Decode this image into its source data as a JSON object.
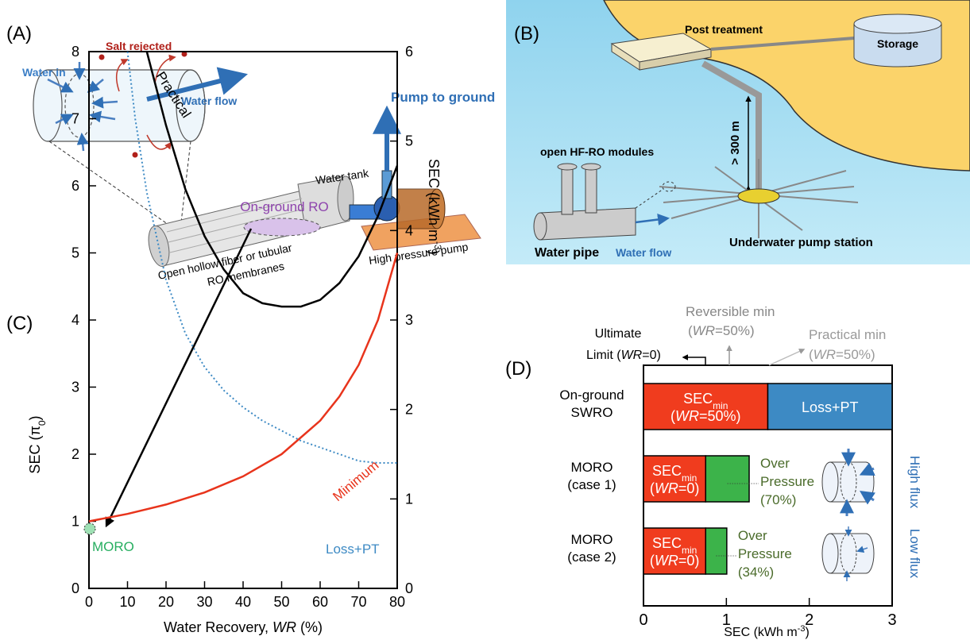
{
  "diagram_a": {
    "label": "(A)",
    "water_in": "Water in",
    "salt_rejected": "Salt rejected",
    "water_flow": "Water flow",
    "pump_to_ground": "Pump to ground",
    "water_tank": "Water tank",
    "membranes": [
      "Open hollow fiber or tubular",
      "RO membranes"
    ],
    "high_pressure_pump": "High pressure pump"
  },
  "diagram_b": {
    "label": "(B)",
    "post_treatment": "Post treatment",
    "storage": "Storage",
    "depth": "> 300 m",
    "modules": "open HF-RO modules",
    "water_pipe": "Water pipe",
    "water_flow": "Water flow",
    "pump_station": "Underwater pump station"
  },
  "chart_data": [
    {
      "type": "line",
      "label": "(C)",
      "xlabel": [
        "Water Recovery, ",
        "WR",
        " (%)"
      ],
      "ylabel": [
        "SEC (π",
        "0",
        ")"
      ],
      "y2label": [
        "SEC (kWh m",
        "-3",
        ")"
      ],
      "xlim": [
        0,
        80
      ],
      "xticks": [
        0,
        10,
        20,
        30,
        40,
        50,
        60,
        70,
        80
      ],
      "ylim": [
        0,
        8
      ],
      "yticks": [
        0,
        1,
        2,
        3,
        4,
        5,
        6,
        7,
        8
      ],
      "y2lim": [
        0,
        6
      ],
      "y2ticks": [
        0,
        1,
        2,
        3,
        4,
        5,
        6
      ],
      "series": [
        {
          "name": "Practical",
          "color": "#000000",
          "style": "solid",
          "x": [
            15,
            20,
            25,
            30,
            35,
            40,
            45,
            50,
            55,
            60,
            65,
            70,
            75,
            80
          ],
          "values": [
            8,
            6.9,
            5.95,
            5.25,
            4.75,
            4.4,
            4.25,
            4.2,
            4.2,
            4.3,
            4.55,
            4.95,
            5.55,
            6.3
          ]
        },
        {
          "name": "Minimum",
          "color": "#e8341c",
          "style": "solid",
          "x": [
            0,
            10,
            20,
            30,
            40,
            50,
            60,
            65,
            70,
            75,
            80
          ],
          "values": [
            1,
            1.11,
            1.25,
            1.43,
            1.67,
            2,
            2.5,
            2.86,
            3.33,
            4,
            5
          ]
        },
        {
          "name": "Loss+PT",
          "color": "#3d8ac4",
          "style": "dotted",
          "x": [
            10,
            12,
            15,
            20,
            25,
            30,
            35,
            40,
            45,
            50,
            55,
            60,
            65,
            70,
            75,
            80
          ],
          "values": [
            8,
            7,
            5.9,
            4.6,
            3.8,
            3.3,
            2.95,
            2.7,
            2.5,
            2.35,
            2.2,
            2.1,
            2.0,
            1.9,
            1.87,
            1.87
          ]
        }
      ],
      "annotations": {
        "on_ground": "On-ground RO",
        "moro": "MORO"
      }
    },
    {
      "type": "hbar_stacked",
      "label": "(D)",
      "categories": [
        [
          "On-ground",
          "SWRO"
        ],
        [
          "MORO",
          "(case 1)"
        ],
        [
          "MORO",
          "(case 2)"
        ]
      ],
      "xlim": [
        0,
        3
      ],
      "xticks": [
        0,
        1,
        2,
        3
      ],
      "xlabel": [
        "SEC (kWh m",
        "-3",
        ")"
      ],
      "series": [
        {
          "name": [
            "SEC",
            "min"
          ],
          "color": "#f03c1e",
          "values": [
            1.5,
            0.75,
            0.75
          ],
          "bar_labels": [
            [
              "(",
              "WR",
              "=50%)"
            ],
            [
              "(",
              "WR",
              "=0)"
            ],
            [
              "(",
              "WR",
              "=0)"
            ]
          ]
        },
        {
          "name": "Loss+PT",
          "color": "#3d8ac4",
          "values": [
            1.5,
            null,
            null
          ]
        },
        {
          "name": [
            "Over",
            "Pressure"
          ],
          "color": "#3cb34a",
          "values": [
            null,
            0.525,
            0.255
          ],
          "bar_labels": [
            null,
            "(70%)",
            "(34%)"
          ]
        }
      ],
      "annotations": {
        "ultimate": [
          "Ultimate",
          "Limit (",
          "WR",
          "=0)"
        ],
        "reversible": [
          "Reversible min",
          "(",
          "WR",
          "=50%)"
        ],
        "practical": [
          "Practical min",
          "(",
          "WR",
          "=50%)"
        ],
        "flux": [
          "High flux",
          "Low flux"
        ]
      }
    }
  ]
}
